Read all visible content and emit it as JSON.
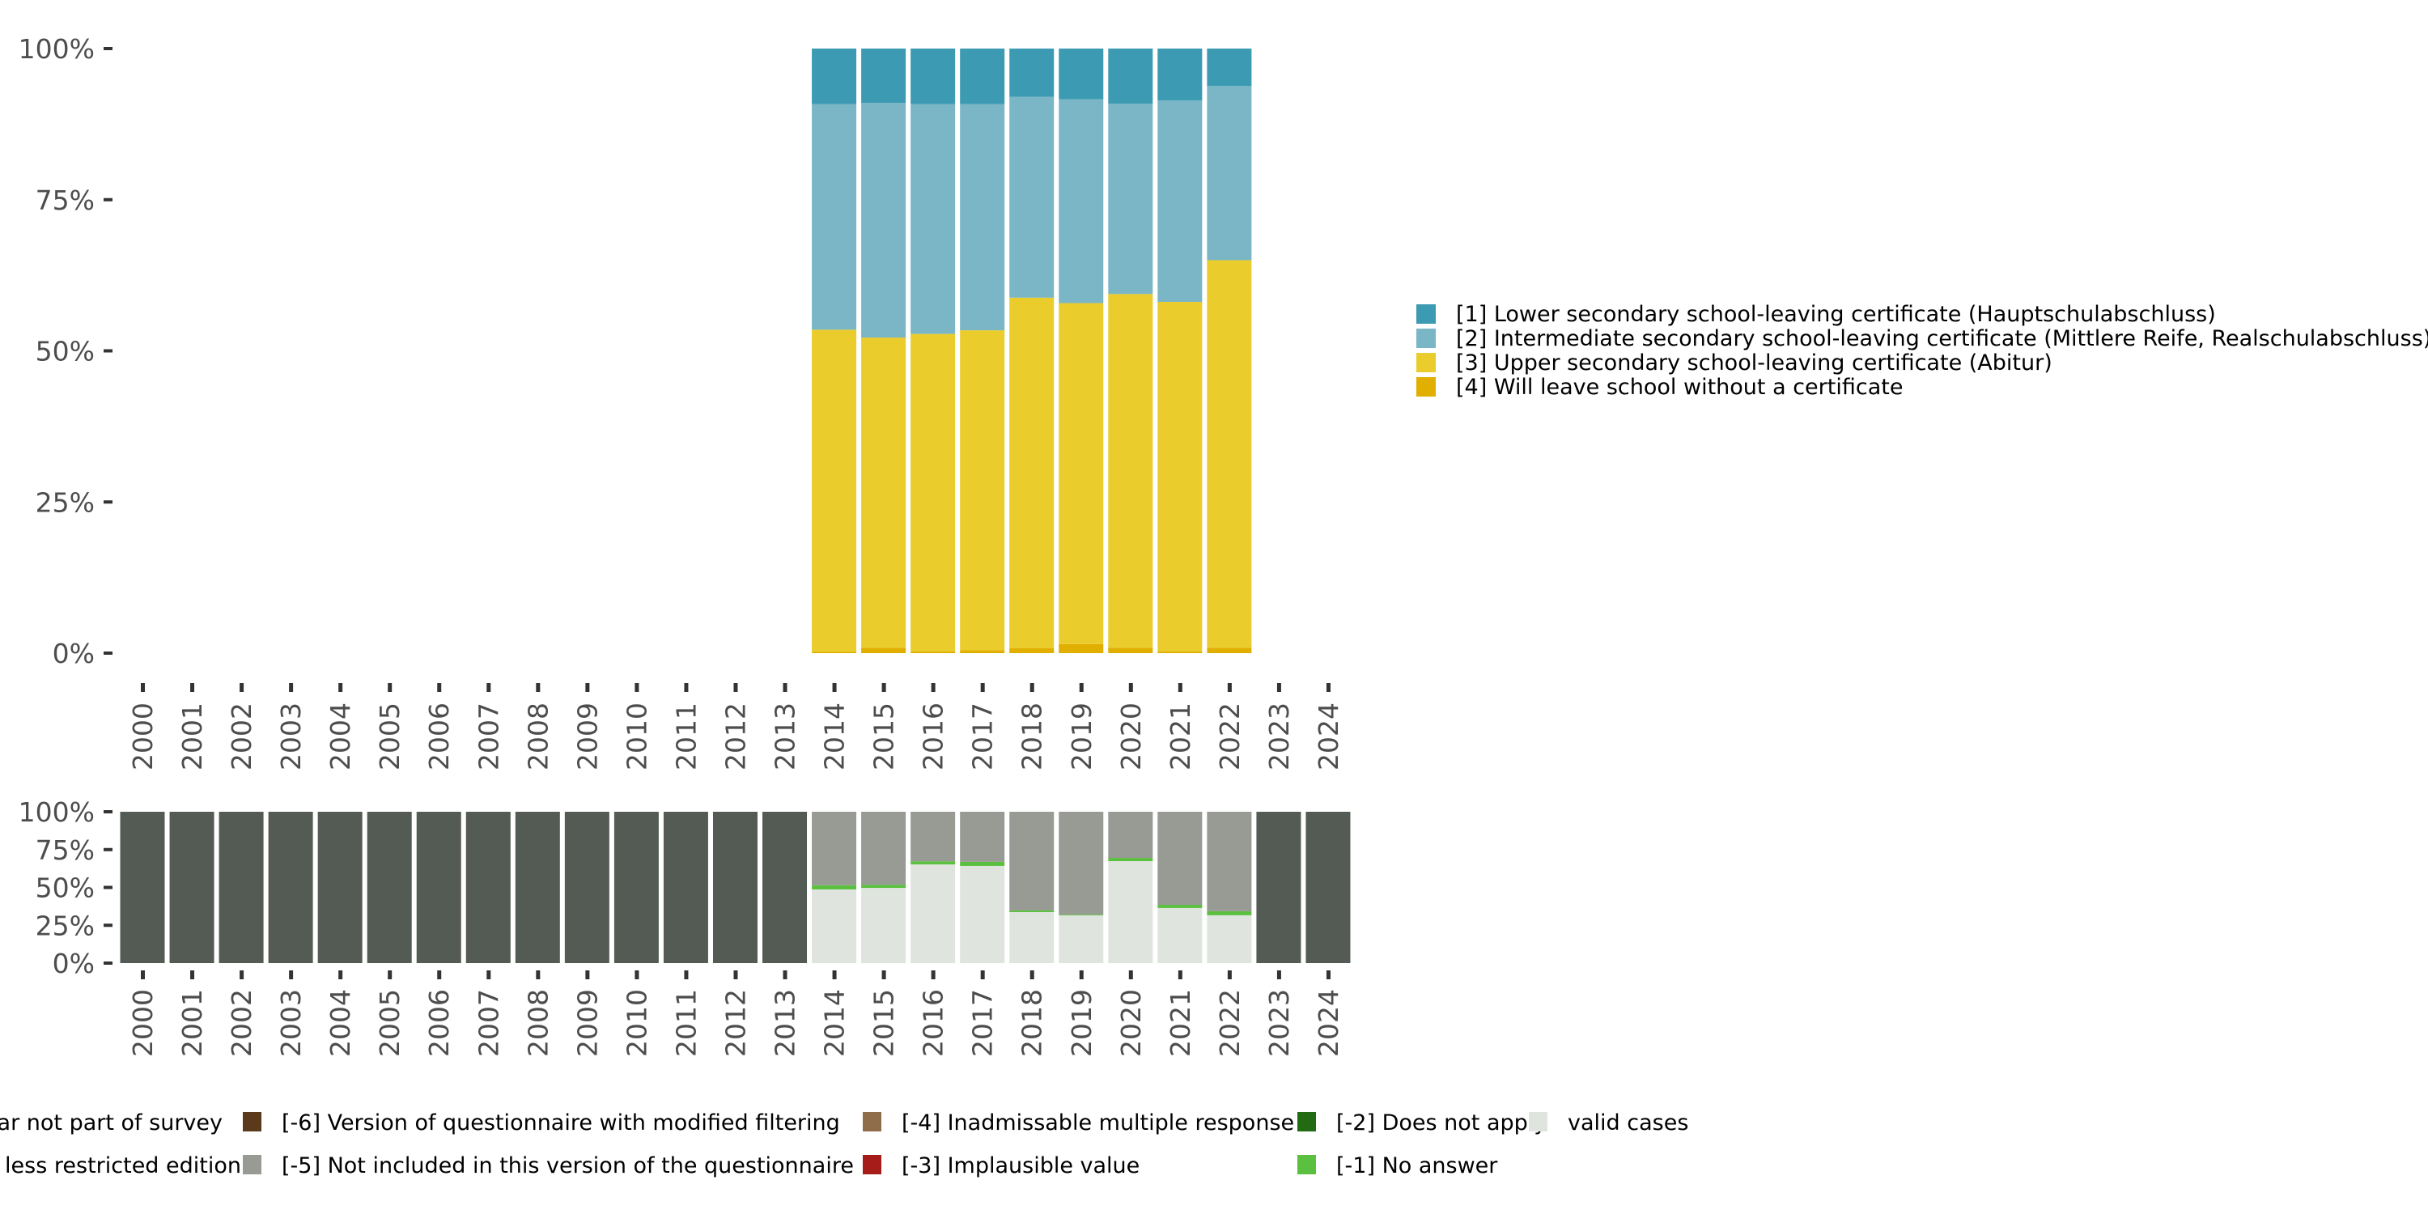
{
  "chart_data": [
    {
      "type": "bar",
      "stacked": true,
      "title": "",
      "xlabel": "",
      "ylabel": "",
      "ylim": [
        0,
        100
      ],
      "yticks": [
        "0%",
        "25%",
        "50%",
        "75%",
        "100%"
      ],
      "grid": false,
      "legend_position": "right",
      "categories": [
        "2000",
        "2001",
        "2002",
        "2003",
        "2004",
        "2005",
        "2006",
        "2007",
        "2008",
        "2009",
        "2010",
        "2011",
        "2012",
        "2013",
        "2014",
        "2015",
        "2016",
        "2017",
        "2018",
        "2019",
        "2020",
        "2021",
        "2022",
        "2023",
        "2024"
      ],
      "series": [
        {
          "name": "[4] Will leave school without a certificate",
          "color": "#E0AF00",
          "values": [
            null,
            null,
            null,
            null,
            null,
            null,
            null,
            null,
            null,
            null,
            null,
            null,
            null,
            null,
            0.2,
            0.9,
            0.3,
            0.5,
            0.8,
            1.5,
            0.9,
            0.3,
            0.9,
            null,
            null
          ]
        },
        {
          "name": "[3] Upper secondary school-leaving certificate (Abitur)",
          "color": "#EACC2C",
          "values": [
            null,
            null,
            null,
            null,
            null,
            null,
            null,
            null,
            null,
            null,
            null,
            null,
            null,
            null,
            53.3,
            51.3,
            52.5,
            52.9,
            58.0,
            56.4,
            58.5,
            57.8,
            64.1,
            null,
            null
          ]
        },
        {
          "name": "[2] Intermediate secondary school-leaving certificate (Mittlere Reife, Realschulabschluss)",
          "color": "#7AB6C6",
          "values": [
            null,
            null,
            null,
            null,
            null,
            null,
            null,
            null,
            null,
            null,
            null,
            null,
            null,
            null,
            37.3,
            38.8,
            38.0,
            37.4,
            33.2,
            33.7,
            31.5,
            33.3,
            28.8,
            null,
            null
          ]
        },
        {
          "name": "[1] Lower secondary school-leaving certificate (Hauptschulabschluss)",
          "color": "#3C9AB2",
          "values": [
            null,
            null,
            null,
            null,
            null,
            null,
            null,
            null,
            null,
            null,
            null,
            null,
            null,
            null,
            9.2,
            9.0,
            9.2,
            9.2,
            8.0,
            8.4,
            9.1,
            8.6,
            6.2,
            null,
            null
          ]
        }
      ],
      "legend_order": [
        3,
        2,
        1,
        0
      ]
    },
    {
      "type": "bar",
      "stacked": true,
      "title": "",
      "xlabel": "",
      "ylabel": "",
      "ylim": [
        0,
        100
      ],
      "yticks": [
        "0%",
        "25%",
        "50%",
        "75%",
        "100%"
      ],
      "grid": false,
      "legend_position": "bottom",
      "categories": [
        "2000",
        "2001",
        "2002",
        "2003",
        "2004",
        "2005",
        "2006",
        "2007",
        "2008",
        "2009",
        "2010",
        "2011",
        "2012",
        "2013",
        "2014",
        "2015",
        "2016",
        "2017",
        "2018",
        "2019",
        "2020",
        "2021",
        "2022",
        "2023",
        "2024"
      ],
      "series": [
        {
          "name": "valid cases",
          "color": "#E0E4DF",
          "values": [
            0,
            0,
            0,
            0,
            0,
            0,
            0,
            0,
            0,
            0,
            0,
            0,
            0,
            0,
            48.7,
            49.7,
            65.2,
            64.2,
            33.7,
            31.6,
            67.4,
            36.4,
            31.6,
            0,
            0
          ]
        },
        {
          "name": "[-1] No answer",
          "color": "#5BC040",
          "values": [
            0,
            0,
            0,
            0,
            0,
            0,
            0,
            0,
            0,
            0,
            0,
            0,
            0,
            0,
            2.8,
            2.1,
            2.1,
            2.7,
            1.1,
            0.5,
            2.1,
            2.1,
            2.7,
            0,
            0
          ]
        },
        {
          "name": "[-5] Not included in this version of the questionnaire",
          "color": "#979B94",
          "values": [
            0,
            0,
            0,
            0,
            0,
            0,
            0,
            0,
            0,
            0,
            0,
            0,
            0,
            0,
            48.5,
            48.2,
            32.7,
            33.1,
            65.2,
            67.9,
            30.5,
            61.5,
            65.7,
            0,
            0
          ]
        },
        {
          "name": "Year not part of survey",
          "color": "#545B54",
          "values": [
            100,
            100,
            100,
            100,
            100,
            100,
            100,
            100,
            100,
            100,
            100,
            100,
            100,
            100,
            0,
            0,
            0,
            0,
            0,
            0,
            0,
            0,
            0,
            100,
            100
          ]
        }
      ]
    }
  ],
  "bottom_legend": [
    [
      {
        "label": "ear not part of survey",
        "color": "#545B54"
      },
      {
        "label": "n less restricted edition",
        "color": "#3A3F3A"
      }
    ],
    [
      {
        "label": "[-6] Version of questionnaire with modified filtering",
        "color": "#5A3A1A"
      },
      {
        "label": "[-5] Not included in this version of the questionnaire",
        "color": "#979B94"
      }
    ],
    [
      {
        "label": "[-4] Inadmissable multiple response",
        "color": "#8F6D4B"
      },
      {
        "label": "[-3] Implausible value",
        "color": "#A51C18"
      }
    ],
    [
      {
        "label": "[-2] Does not apply",
        "color": "#236B12"
      },
      {
        "label": "[-1] No answer",
        "color": "#5BC040"
      }
    ],
    [
      {
        "label": "valid cases",
        "color": "#E0E4DF"
      }
    ]
  ]
}
